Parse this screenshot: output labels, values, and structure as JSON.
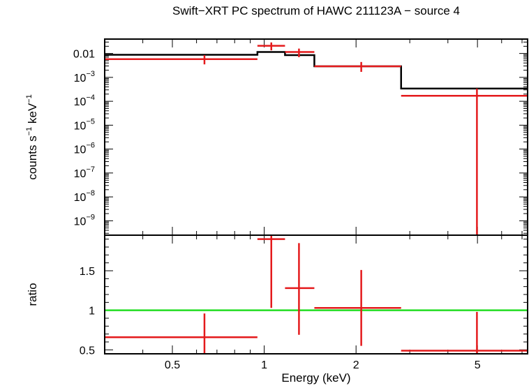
{
  "chart_data": [
    {
      "type": "line",
      "panel": "spectrum",
      "title": "Swift−XRT PC spectrum of HAWC 211123A − source 4",
      "ylabel": {
        "base": "counts s",
        "sup1": "−1",
        "mid": " keV",
        "sup2": "−1"
      },
      "xscale": "log",
      "yscale": "log",
      "xlim": [
        0.3,
        7.3
      ],
      "ylim": [
        2.5e-10,
        0.04
      ],
      "yticks": [
        {
          "value": 0.01,
          "label": "0.01"
        },
        {
          "value": 0.001,
          "base": "10",
          "exp": "−3"
        },
        {
          "value": 0.0001,
          "base": "10",
          "exp": "−4"
        },
        {
          "value": 1e-05,
          "base": "10",
          "exp": "−5"
        },
        {
          "value": 1e-06,
          "base": "10",
          "exp": "−6"
        },
        {
          "value": 1e-07,
          "base": "10",
          "exp": "−7"
        },
        {
          "value": 1e-08,
          "base": "10",
          "exp": "−8"
        },
        {
          "value": 1e-09,
          "base": "10",
          "exp": "−9"
        }
      ],
      "series": [
        {
          "kind": "data",
          "color": "#e41a1c",
          "points": [
            {
              "x": 0.637,
              "xlo": 0.3,
              "xhi": 0.95,
              "y": 0.0058,
              "ylo": 0.0035,
              "yhi": 0.0085
            },
            {
              "x": 1.055,
              "xlo": 0.95,
              "xhi": 1.17,
              "y": 0.021,
              "ylo": 0.0135,
              "yhi": 0.029
            },
            {
              "x": 1.3,
              "xlo": 1.17,
              "xhi": 1.46,
              "y": 0.0115,
              "ylo": 0.007,
              "yhi": 0.016
            },
            {
              "x": 2.08,
              "xlo": 1.46,
              "xhi": 2.81,
              "y": 0.0029,
              "ylo": 0.0017,
              "yhi": 0.0044
            },
            {
              "x": 4.98,
              "xlo": 2.81,
              "xhi": 7.3,
              "y": 0.00017,
              "ylo": 2.5e-10,
              "yhi": 0.00034
            }
          ]
        },
        {
          "kind": "model",
          "color": "#000000",
          "steps": [
            {
              "xlo": 0.3,
              "xhi": 0.95,
              "y": 0.0088
            },
            {
              "xlo": 0.95,
              "xhi": 1.17,
              "y": 0.0115
            },
            {
              "xlo": 1.17,
              "xhi": 1.46,
              "y": 0.0085
            },
            {
              "xlo": 1.46,
              "xhi": 2.81,
              "y": 0.0029
            },
            {
              "xlo": 2.81,
              "xhi": 7.3,
              "y": 0.00034
            }
          ]
        }
      ]
    },
    {
      "type": "line",
      "panel": "ratio",
      "ylabel": "ratio",
      "xlabel": "Energy (keV)",
      "xscale": "log",
      "xlim": [
        0.3,
        7.3
      ],
      "ylim": [
        0.45,
        1.95
      ],
      "yticks": [
        {
          "value": 0.5,
          "label": "0.5"
        },
        {
          "value": 1,
          "label": "1"
        },
        {
          "value": 1.5,
          "label": "1.5"
        }
      ],
      "xticks": [
        {
          "value": 0.5,
          "label": "0.5"
        },
        {
          "value": 1,
          "label": "1"
        },
        {
          "value": 2,
          "label": "2"
        },
        {
          "value": 5,
          "label": "5"
        }
      ],
      "reference_line": {
        "y": 1,
        "color": "#22dd22"
      },
      "series": [
        {
          "kind": "data",
          "color": "#e41a1c",
          "points": [
            {
              "x": 0.637,
              "xlo": 0.3,
              "xhi": 0.95,
              "y": 0.66,
              "ylo": 0.45,
              "yhi": 0.96
            },
            {
              "x": 1.055,
              "xlo": 0.95,
              "xhi": 1.17,
              "y": 1.9,
              "ylo": 1.03,
              "yhi": 1.95
            },
            {
              "x": 1.3,
              "xlo": 1.17,
              "xhi": 1.46,
              "y": 1.28,
              "ylo": 0.69,
              "yhi": 1.85
            },
            {
              "x": 2.08,
              "xlo": 1.46,
              "xhi": 2.81,
              "y": 1.03,
              "ylo": 0.55,
              "yhi": 1.51
            },
            {
              "x": 4.98,
              "xlo": 2.81,
              "xhi": 7.3,
              "y": 0.49,
              "ylo": 0.45,
              "yhi": 0.98
            }
          ]
        }
      ]
    }
  ]
}
